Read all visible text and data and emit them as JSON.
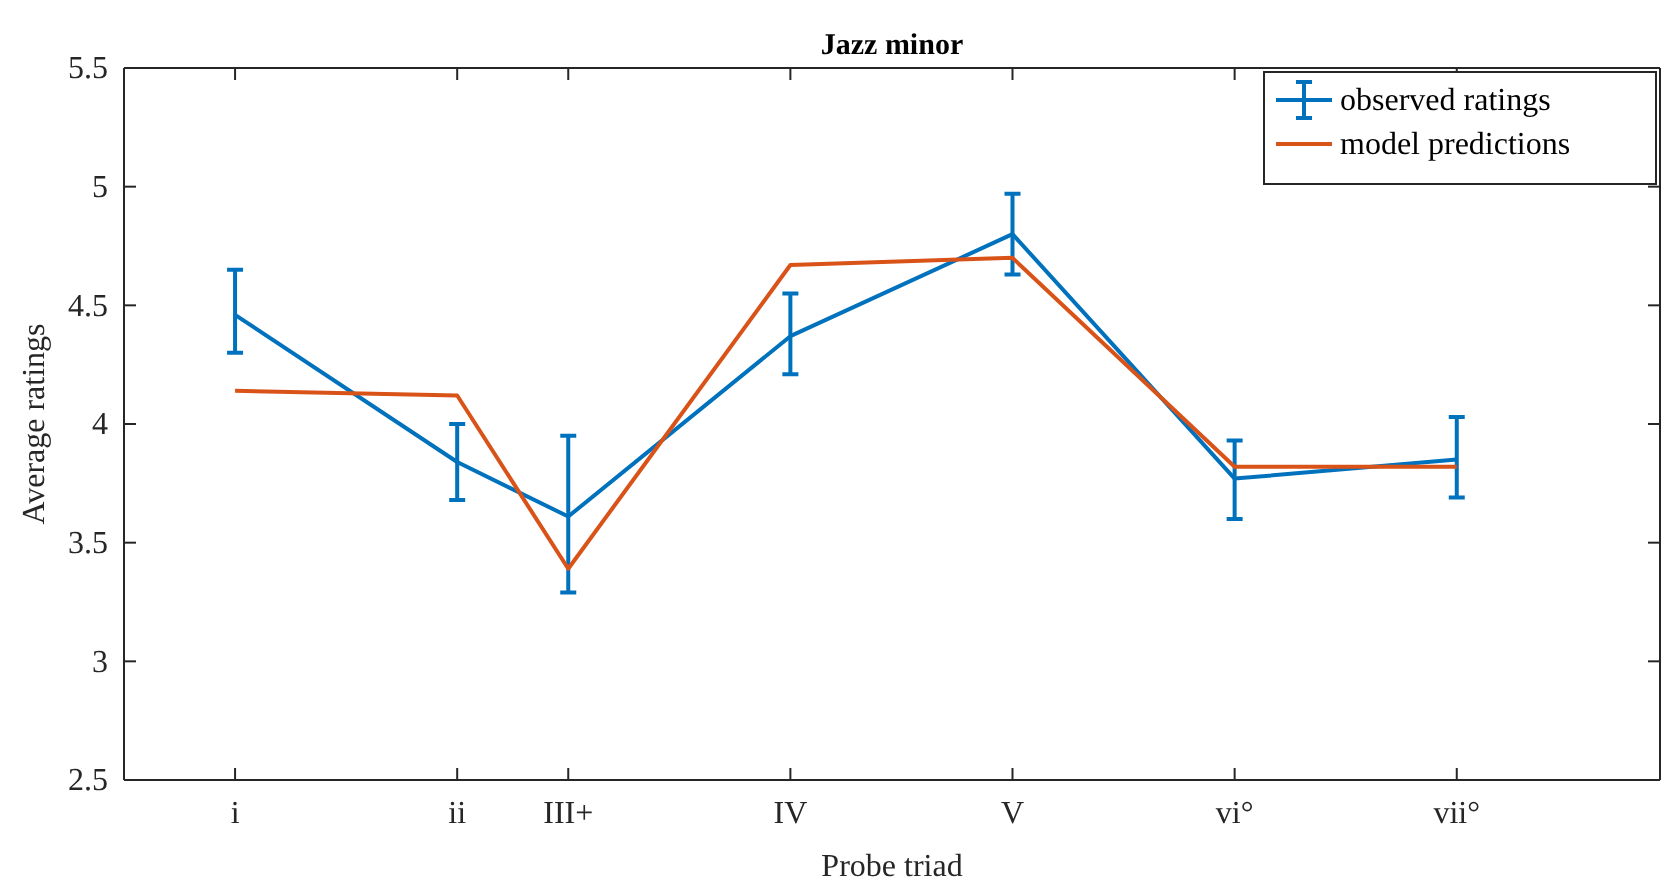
{
  "chart_data": {
    "type": "line",
    "title": "Jazz minor",
    "xlabel": "Probe triad",
    "ylabel": "Average ratings",
    "categories": [
      "i",
      null,
      "ii",
      "III+",
      null,
      "IV",
      null,
      "V",
      null,
      "vi°",
      null,
      "vii°"
    ],
    "ylim": [
      2.5,
      5.5
    ],
    "yticks": [
      2.5,
      3,
      3.5,
      4,
      4.5,
      5,
      5.5
    ],
    "legend": "top right",
    "grid": false,
    "marker": "none",
    "line_style": "solid",
    "series": [
      {
        "name": "observed ratings",
        "color": "#0072bd",
        "values": [
          4.46,
          null,
          3.84,
          3.61,
          null,
          4.37,
          null,
          4.8,
          null,
          3.77,
          null,
          3.85
        ],
        "errors": [
          [
            4.3,
            4.65
          ],
          null,
          [
            3.68,
            4.0
          ],
          [
            3.29,
            3.95
          ],
          null,
          [
            4.21,
            4.55
          ],
          null,
          [
            4.63,
            4.97
          ],
          null,
          [
            3.6,
            3.93
          ],
          null,
          [
            3.69,
            4.03
          ]
        ]
      },
      {
        "name": "model predictions",
        "color": "#d95319",
        "values": [
          4.14,
          null,
          4.12,
          3.39,
          null,
          4.67,
          null,
          4.7,
          null,
          3.82,
          null,
          3.82
        ]
      }
    ]
  }
}
